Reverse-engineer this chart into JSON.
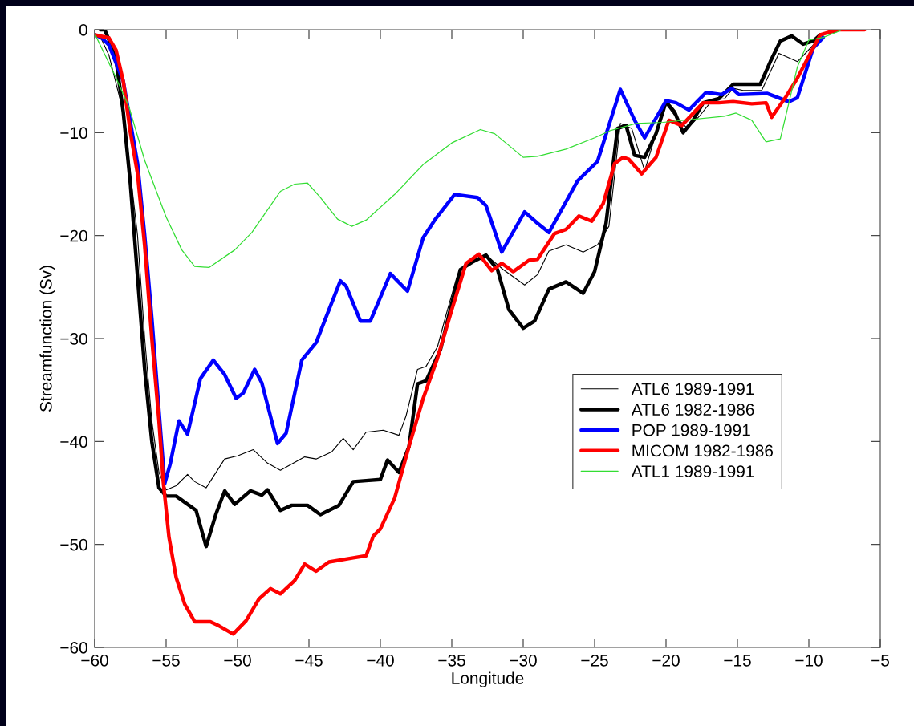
{
  "chart_data": {
    "type": "line",
    "xlabel": "Longitude",
    "ylabel": "Streamfunction (Sv)",
    "xlim": [
      -60,
      -5
    ],
    "ylim": [
      -60,
      0
    ],
    "xticks": [
      {
        "value": -60,
        "label": "−60"
      },
      {
        "value": -55,
        "label": "−55"
      },
      {
        "value": -50,
        "label": "−50"
      },
      {
        "value": -45,
        "label": "−45"
      },
      {
        "value": -40,
        "label": "−40"
      },
      {
        "value": -35,
        "label": "−35"
      },
      {
        "value": -30,
        "label": "−30"
      },
      {
        "value": -25,
        "label": "−25"
      },
      {
        "value": -20,
        "label": "−20"
      },
      {
        "value": -15,
        "label": "−15"
      },
      {
        "value": -10,
        "label": "−10"
      },
      {
        "value": -5,
        "label": "−5"
      }
    ],
    "yticks": [
      {
        "value": -60,
        "label": "−60"
      },
      {
        "value": -50,
        "label": "−50"
      },
      {
        "value": -40,
        "label": "−40"
      },
      {
        "value": -30,
        "label": "−30"
      },
      {
        "value": -20,
        "label": "−20"
      },
      {
        "value": -10,
        "label": "−10"
      },
      0
    ],
    "grid": false,
    "legend": "center right",
    "marker": "none",
    "line_style": "solid",
    "series": [
      {
        "name": "ATL6 1989-1991",
        "color": "#000000",
        "x": [
          -60,
          -59.5,
          -59,
          -58,
          -57,
          -56.5,
          -56,
          -55.5,
          -55,
          -54.3,
          -53.5,
          -53,
          -52.2,
          -50.9,
          -50,
          -48.9,
          -47.9,
          -47,
          -45.3,
          -44.5,
          -43.4,
          -42.6,
          -41.9,
          -41,
          -39.8,
          -38.7,
          -38.2,
          -37.4,
          -36.8,
          -36,
          -35.4,
          -34.6,
          -34,
          -32.6,
          -31.4,
          -29.9,
          -29,
          -28.2,
          -27,
          -25.8,
          -24.8,
          -24,
          -23.2,
          -22.4,
          -21.5,
          -20.7,
          -20,
          -19.3,
          -18.5,
          -17.6,
          -16.8,
          -15.9,
          -15.3,
          -14.6,
          -13.3,
          -12.1,
          -10.8,
          -9.7,
          -9.2,
          -8
        ],
        "values": [
          -0.3,
          -1,
          -2.5,
          -8,
          -20,
          -30,
          -38,
          -43,
          -44.7,
          -44.3,
          -43.2,
          -43.9,
          -44.5,
          -41.7,
          -41.4,
          -40.8,
          -42.1,
          -42.8,
          -41.5,
          -41.7,
          -41,
          -39.7,
          -40.8,
          -39.1,
          -38.9,
          -39.4,
          -37.5,
          -33,
          -32.7,
          -30.8,
          -27.7,
          -23.8,
          -22.6,
          -21.9,
          -23.3,
          -24.8,
          -23.8,
          -21.5,
          -20.9,
          -21.6,
          -20.9,
          -19.1,
          -9.1,
          -9.6,
          -13.7,
          -10.1,
          -7.2,
          -8.5,
          -9.6,
          -8.3,
          -6.9,
          -6.7,
          -5.7,
          -5.9,
          -5.9,
          -2.3,
          -3.1,
          -1.5,
          -0.5,
          -0.2
        ]
      },
      {
        "name": "ATL6 1982-1986",
        "color": "#000000",
        "x": [
          -59.6,
          -59.3,
          -59,
          -58.5,
          -58,
          -57.5,
          -57,
          -56.5,
          -56,
          -55.5,
          -55,
          -54.3,
          -53.4,
          -52.9,
          -52.2,
          -51.5,
          -50.9,
          -50.2,
          -49.1,
          -48.3,
          -47.9,
          -47,
          -46.2,
          -45.1,
          -44.2,
          -42.9,
          -41.9,
          -41,
          -40,
          -39.5,
          -38.7,
          -38,
          -37.4,
          -36.8,
          -35.8,
          -35,
          -34.4,
          -33.6,
          -32.6,
          -31.8,
          -31,
          -30,
          -29.2,
          -28.2,
          -27,
          -25.8,
          -25,
          -24.2,
          -23.4,
          -22.8,
          -22.2,
          -21.5,
          -20.7,
          -20,
          -19.4,
          -18.8,
          -18.1,
          -17.4,
          -16.3,
          -15.3,
          -13.4,
          -12.7,
          -12,
          -11.2,
          -10.4,
          -9.7,
          -9.2
        ],
        "values": [
          0,
          0,
          -1,
          -3,
          -8,
          -15,
          -24,
          -33,
          -40,
          -44.5,
          -45.3,
          -45.3,
          -46.2,
          -46.7,
          -50.2,
          -47,
          -44.8,
          -46.1,
          -44.8,
          -45.2,
          -44.7,
          -46.7,
          -46.2,
          -46.2,
          -47.1,
          -46.2,
          -43.9,
          -43.8,
          -43.7,
          -41.8,
          -43,
          -40.5,
          -34.4,
          -34.1,
          -31.1,
          -26.6,
          -23.3,
          -22.6,
          -21.9,
          -23.3,
          -27.2,
          -29,
          -28.3,
          -25.2,
          -24.5,
          -25.6,
          -23.5,
          -18.8,
          -9.6,
          -9.3,
          -12.2,
          -12.4,
          -10.1,
          -7,
          -8,
          -10,
          -8.8,
          -7.1,
          -6.7,
          -5.3,
          -5.3,
          -3.1,
          -1.1,
          -0.6,
          -1.4,
          -1.1,
          -0.5
        ]
      },
      {
        "name": "POP 1989-1991",
        "color": "#0000ff",
        "x": [
          -60,
          -59.5,
          -59,
          -58,
          -57,
          -56.5,
          -56,
          -55.5,
          -55.1,
          -54.7,
          -54.1,
          -53.5,
          -52.6,
          -51.7,
          -50.9,
          -50.1,
          -49.6,
          -48.8,
          -48.3,
          -47.2,
          -46.6,
          -45.5,
          -44.5,
          -43.4,
          -42.8,
          -42.4,
          -41.4,
          -40.7,
          -39.3,
          -38.1,
          -37,
          -36.2,
          -34.8,
          -33.2,
          -32.6,
          -31.5,
          -29.9,
          -29,
          -28.2,
          -26.2,
          -24.8,
          -23.2,
          -22.2,
          -21.5,
          -20,
          -19.3,
          -18.4,
          -17.2,
          -16.1,
          -15.4,
          -14.9,
          -12.9,
          -11.4,
          -10.8,
          -9.7,
          -9
        ],
        "values": [
          -0.5,
          -0.8,
          -1.5,
          -5,
          -13,
          -20,
          -28,
          -37,
          -44.1,
          -42.1,
          -38,
          -39.3,
          -33.9,
          -32.1,
          -33.5,
          -35.8,
          -35.3,
          -33,
          -34.3,
          -40.2,
          -39.2,
          -32.1,
          -30.4,
          -26.5,
          -24.4,
          -24.9,
          -28.3,
          -28.3,
          -23.7,
          -25.4,
          -20.2,
          -18.5,
          -16,
          -16.3,
          -17.1,
          -21.6,
          -17.7,
          -18.8,
          -19.7,
          -14.7,
          -12.8,
          -5.8,
          -8.8,
          -10.5,
          -6.9,
          -7.1,
          -7.8,
          -6.1,
          -6.3,
          -5.7,
          -6.3,
          -6.2,
          -7,
          -6.6,
          -1.8,
          -0.75
        ]
      },
      {
        "name": "MICOM 1982-1986",
        "color": "#ff0000",
        "x": [
          -60,
          -59,
          -58.5,
          -58,
          -57.5,
          -57,
          -56.5,
          -56,
          -55.5,
          -55.2,
          -54.8,
          -54.3,
          -53.7,
          -53,
          -51.9,
          -51.3,
          -50.3,
          -49.4,
          -48.5,
          -47.7,
          -47,
          -46,
          -45.3,
          -44.5,
          -43.6,
          -41.9,
          -41,
          -40.5,
          -40,
          -39.5,
          -39,
          -38,
          -37,
          -36,
          -35,
          -34,
          -33.1,
          -32.2,
          -31.5,
          -30.7,
          -29.6,
          -29,
          -27.8,
          -27,
          -26.1,
          -25.2,
          -24.4,
          -23.6,
          -23,
          -22.6,
          -21.7,
          -20.7,
          -19.8,
          -18.9,
          -17.4,
          -16.3,
          -15.3,
          -14,
          -13,
          -12.6,
          -11.6,
          -10.8,
          -9.9,
          -9.2,
          -8,
          -6.1
        ],
        "values": [
          -0.5,
          -0.8,
          -2,
          -5,
          -10,
          -14,
          -21,
          -30,
          -38,
          -43.9,
          -49.3,
          -53.2,
          -55.8,
          -57.5,
          -57.5,
          -57.9,
          -58.7,
          -57.4,
          -55.3,
          -54.3,
          -54.8,
          -53.5,
          -51.9,
          -52.6,
          -51.7,
          -51.3,
          -51.1,
          -49.2,
          -48.5,
          -47,
          -45.5,
          -40.5,
          -35.8,
          -31.9,
          -27.2,
          -22.7,
          -21.8,
          -23.4,
          -22.7,
          -23.5,
          -22.4,
          -22.3,
          -19.8,
          -19.4,
          -18.1,
          -18.6,
          -16.9,
          -13,
          -12.4,
          -12.6,
          -14,
          -12.4,
          -8.8,
          -9.3,
          -7.1,
          -7.1,
          -7,
          -7.2,
          -7.1,
          -8.5,
          -6.5,
          -4.7,
          -2.3,
          -0.5,
          0,
          0
        ]
      },
      {
        "name": "ATL1 1989-1991",
        "color": "#33dd33",
        "x": [
          -60,
          -58.7,
          -57.6,
          -56.5,
          -55,
          -53.9,
          -53,
          -52,
          -50.2,
          -49,
          -47,
          -46,
          -45.1,
          -44.2,
          -43,
          -42,
          -41,
          -39,
          -37,
          -35,
          -33,
          -32,
          -30,
          -29,
          -27,
          -25,
          -23.9,
          -22.1,
          -20.2,
          -15.9,
          -15.1,
          -14,
          -13,
          -12,
          -10.8,
          -10,
          -9,
          -7.8
        ],
        "values": [
          -0.4,
          -4.1,
          -7.5,
          -12.7,
          -18.2,
          -21.4,
          -23,
          -23.1,
          -21.4,
          -19.7,
          -15.7,
          -15,
          -14.9,
          -16.3,
          -18.4,
          -19.1,
          -18.5,
          -16,
          -13.1,
          -11,
          -9.7,
          -10.1,
          -12.4,
          -12.3,
          -11.6,
          -10.5,
          -9.8,
          -9.1,
          -9,
          -8.4,
          -8.1,
          -8.8,
          -10.9,
          -10.6,
          -3.6,
          -1,
          -0.75,
          -0.1
        ]
      }
    ]
  }
}
